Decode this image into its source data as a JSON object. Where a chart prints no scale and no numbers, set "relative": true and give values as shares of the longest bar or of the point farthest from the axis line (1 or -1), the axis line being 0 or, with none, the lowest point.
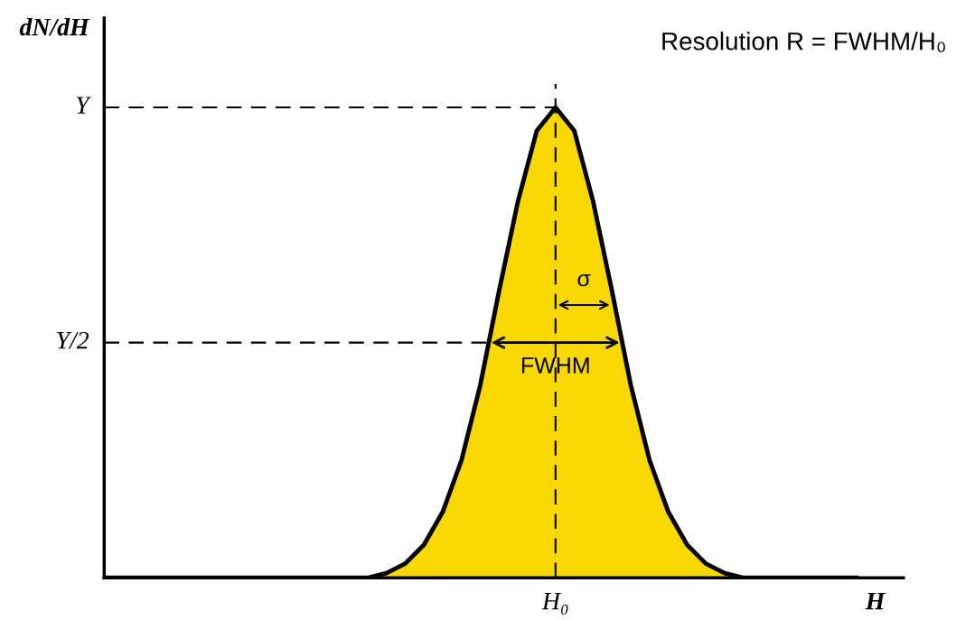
{
  "chart_data": {
    "type": "area",
    "relative": true,
    "color": "#f8d800",
    "categories": [
      null,
      null,
      null,
      null,
      null,
      null,
      null,
      null,
      null,
      null,
      null,
      null,
      null,
      null,
      null,
      null,
      null,
      null,
      null,
      null,
      null,
      null,
      null,
      null,
      null,
      null,
      null,
      null,
      null,
      null,
      null,
      null,
      null,
      null,
      null,
      null,
      null,
      null,
      null,
      null,
      null
    ],
    "values": [
      0,
      0,
      0,
      0,
      0,
      0,
      0,
      0,
      0,
      0,
      0,
      0,
      0,
      0,
      0,
      0.01,
      0.03,
      0.07,
      0.14,
      0.25,
      0.41,
      0.61,
      0.8,
      0.95,
      1,
      0.95,
      0.8,
      0.61,
      0.41,
      0.25,
      0.14,
      0.07,
      0.03,
      0.01,
      0,
      0,
      0,
      0,
      0,
      0,
      0
    ],
    "ylabel": "dN/dH",
    "xlabel": "H",
    "line_style": "dashed",
    "ref_lines": [
      {
        "axis": "y",
        "value": 1,
        "label": "Y"
      },
      {
        "axis": "y",
        "value": 0.5,
        "label": "Y/2"
      },
      {
        "axis": "x",
        "label": "H₀"
      }
    ],
    "annotations": [
      "FWHM",
      "σ",
      "Resolution R = FWHM/H₀"
    ],
    "legend": false
  }
}
